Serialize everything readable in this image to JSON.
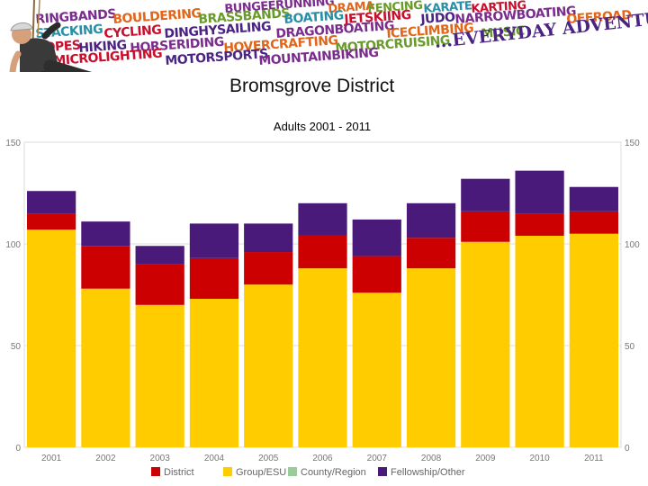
{
  "banner": {
    "words": [
      "BUNGEERUNNING",
      "DRAMA",
      "FENCING",
      "KARATE",
      "KARTING",
      "RINGBANDS",
      "BOULDERING",
      "BRASSBANDS",
      "BOATING",
      "JETSKIING",
      "JUDO",
      "NARROWBOATING",
      "OFFROAD",
      "STACKING",
      "CYCLING",
      "DINGHYSAILING",
      "DRAGONBOATING",
      "ICECLIMBING",
      "MUSIC",
      "ROPES",
      "HIKING",
      "HORSERIDING",
      "HOVERCRAFTING",
      "MOTORCRUISING",
      "MICROLIGHTING",
      "MOTORSPORTS",
      "MOUNTAINBIKING"
    ],
    "tagline": "...EVERYDAY ADVENTURE",
    "colors": [
      "#7a2d8c",
      "#e0661a",
      "#6a9a2a",
      "#2a8fa6",
      "#c8102e",
      "#4b2483"
    ]
  },
  "slide_title": "Bromsgrove District",
  "chart_data": {
    "type": "bar",
    "stacked": true,
    "title": "Adults 2001 - 2011",
    "xlabel": "",
    "ylabel": "",
    "ylim": [
      0,
      150
    ],
    "yticks": [
      0,
      50,
      100,
      150
    ],
    "y_axis_sides": [
      "left",
      "right"
    ],
    "grid": true,
    "legend_position": "bottom",
    "categories": [
      "2001",
      "2002",
      "2003",
      "2004",
      "2005",
      "2006",
      "2007",
      "2008",
      "2009",
      "2010",
      "2011"
    ],
    "series": [
      {
        "name": "Group/ESU",
        "color": "#ffcc00",
        "values": [
          107,
          78,
          70,
          73,
          80,
          88,
          76,
          88,
          101,
          104,
          105
        ]
      },
      {
        "name": "District",
        "color": "#cc0000",
        "values": [
          8,
          21,
          20,
          20,
          16,
          16,
          18,
          15,
          15,
          11,
          11
        ]
      },
      {
        "name": "County/Region",
        "color": "#99cc99",
        "values": [
          0,
          0,
          0,
          0,
          0,
          0,
          0,
          0,
          0,
          0,
          0
        ]
      },
      {
        "name": "Fellowship/Other",
        "color": "#4a1a7a",
        "values": [
          11,
          12,
          9,
          17,
          14,
          16,
          18,
          17,
          16,
          21,
          12
        ]
      }
    ],
    "legend_order": [
      "District",
      "Group/ESU",
      "County/Region",
      "Fellowship/Other"
    ],
    "colors": {
      "grid": "#dddddd",
      "axis_text": "#777777",
      "title": "#555555"
    }
  }
}
